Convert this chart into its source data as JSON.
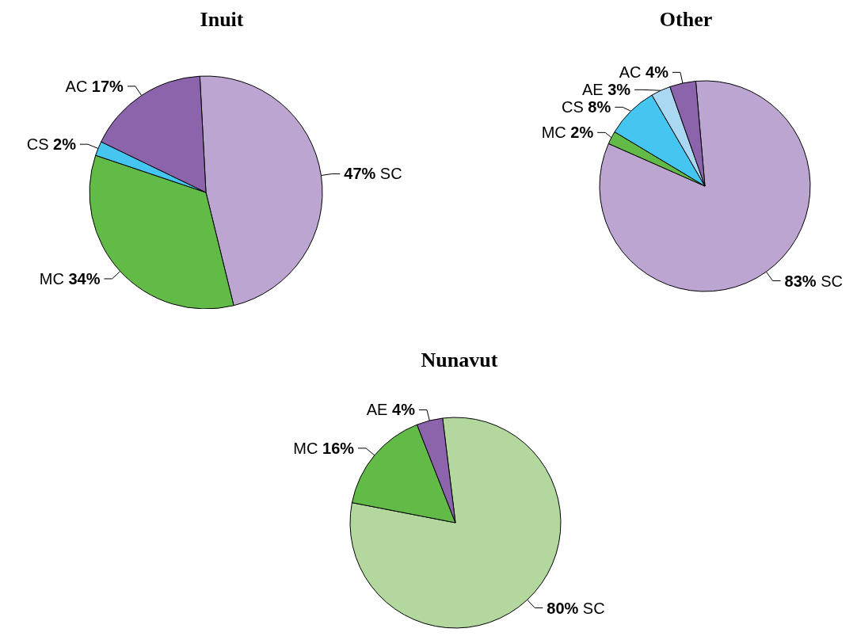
{
  "chart_data": [
    {
      "type": "pie",
      "title": "Inuit",
      "categories": [
        "SC",
        "MC",
        "CS",
        "AC"
      ],
      "values": [
        47,
        34,
        2,
        17
      ],
      "value_labels": [
        "47%",
        "34%",
        "2%",
        "17%"
      ],
      "colors": [
        "#bca5d0",
        "#62bb46",
        "#45c6f0",
        "#8c64ac"
      ],
      "legend": false
    },
    {
      "type": "pie",
      "title": "Other",
      "categories": [
        "SC",
        "MC",
        "CS",
        "AE",
        "AC"
      ],
      "values": [
        83,
        2,
        8,
        3,
        4
      ],
      "value_labels": [
        "83%",
        "2%",
        "8%",
        "3%",
        "4%"
      ],
      "colors": [
        "#bca5d0",
        "#62bb46",
        "#45c6f0",
        "#aad8f2",
        "#8c64ac"
      ],
      "legend": false
    },
    {
      "type": "pie",
      "title": "Nunavut",
      "categories": [
        "SC",
        "MC",
        "AE"
      ],
      "values": [
        80,
        16,
        4
      ],
      "value_labels": [
        "80%",
        "16%",
        "4%"
      ],
      "colors": [
        "#b2d89e",
        "#62bb46",
        "#8c64ac"
      ],
      "legend": false
    }
  ]
}
